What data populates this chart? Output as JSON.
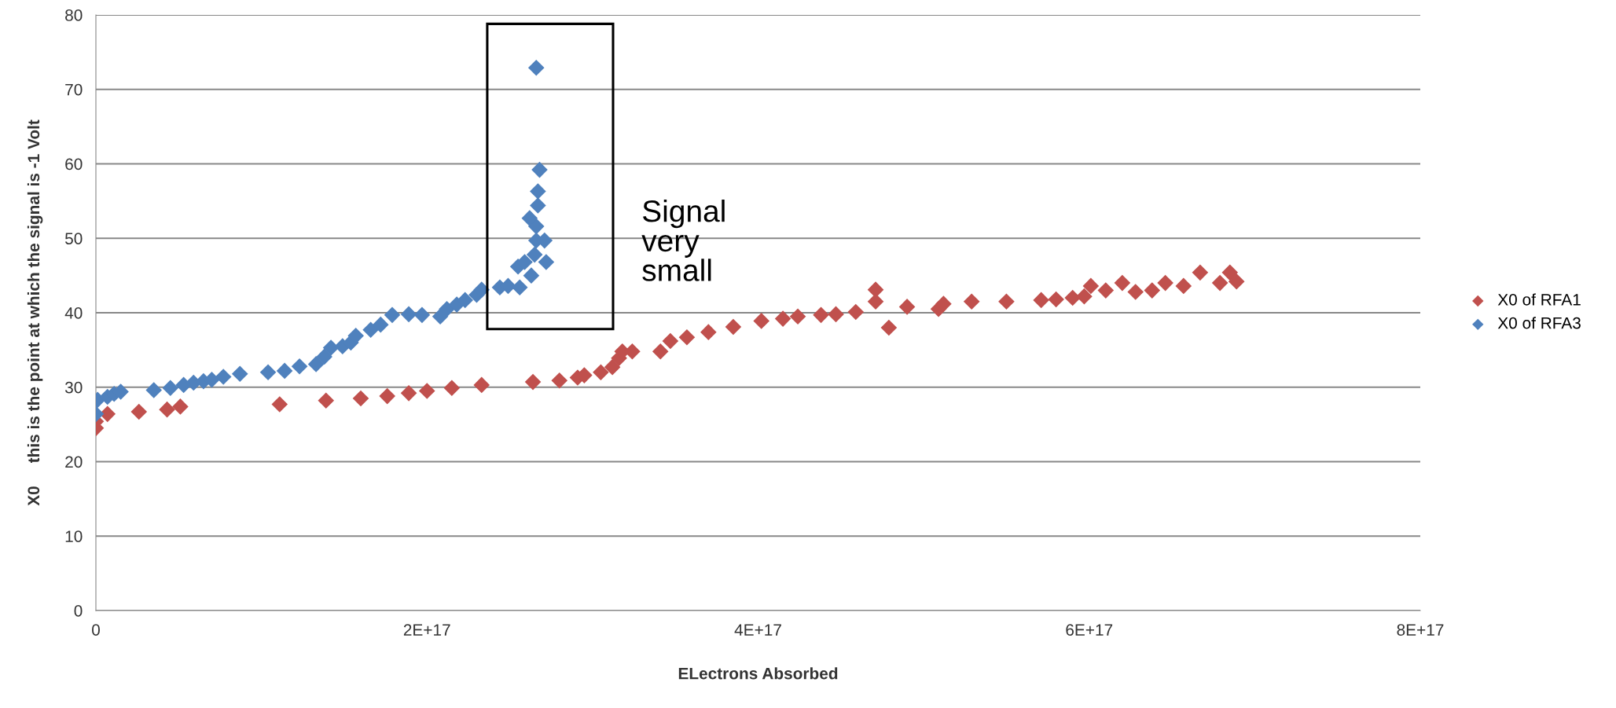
{
  "chart_data": {
    "type": "scatter",
    "xlabel": "ELectrons Absorbed",
    "ylabel": "X0     this is the point at which the signal is -1 Volt",
    "annotations": [
      "Signal\nvery\nsmall"
    ],
    "xlim": [
      0,
      8e+17
    ],
    "xticks": [
      0,
      {
        "value": 2e+17,
        "label": "2E+17"
      },
      {
        "value": 4e+17,
        "label": "4E+17"
      },
      {
        "value": 6e+17,
        "label": "6E+17"
      },
      {
        "value": 8e+17,
        "label": "8E+17"
      }
    ],
    "ylim": [
      0,
      80
    ],
    "yticks": [
      0,
      10,
      20,
      30,
      40,
      50,
      60,
      70,
      80
    ],
    "grid": "y",
    "legend": "right",
    "marker": "diamond",
    "series": [
      {
        "name": "X0 of RFA1",
        "color": "#c0504d",
        "x": [
          0,
          0,
          7000000000000000.0,
          2.6e+16,
          4.3e+16,
          5.1e+16,
          1.11e+17,
          1.39e+17,
          1.6e+17,
          1.76e+17,
          1.89e+17,
          2e+17,
          2.15e+17,
          2.33e+17,
          2.64e+17,
          2.8e+17,
          2.91e+17,
          2.95e+17,
          3.05e+17,
          3.12e+17,
          3.16e+17,
          3.18e+17,
          3.24e+17,
          3.41e+17,
          3.47e+17,
          3.57e+17,
          3.7e+17,
          3.85e+17,
          4.02e+17,
          4.15e+17,
          4.24e+17,
          4.38e+17,
          4.47e+17,
          4.59e+17,
          4.71e+17,
          4.71e+17,
          4.79e+17,
          4.9e+17,
          5.09e+17,
          5.12e+17,
          5.29e+17,
          5.5e+17,
          5.71e+17,
          5.8e+17,
          5.9e+17,
          5.97e+17,
          6.01e+17,
          6.1e+17,
          6.2e+17,
          6.28e+17,
          6.38e+17,
          6.46e+17,
          6.57e+17,
          6.67e+17,
          6.79e+17,
          6.85e+17,
          6.89e+17
        ],
        "values": [
          24.5,
          25.4,
          26.4,
          26.7,
          27.0,
          27.4,
          27.7,
          28.2,
          28.5,
          28.8,
          29.2,
          29.5,
          29.9,
          30.3,
          30.7,
          30.9,
          31.3,
          31.6,
          32.0,
          32.7,
          33.9,
          34.8,
          34.8,
          34.8,
          36.2,
          36.7,
          37.4,
          38.1,
          38.9,
          39.2,
          39.5,
          39.7,
          39.8,
          40.1,
          43.1,
          41.5,
          38.0,
          40.8,
          40.5,
          41.2,
          41.5,
          41.5,
          41.7,
          41.8,
          42.0,
          42.2,
          43.6,
          43.0,
          44.0,
          42.8,
          43.0,
          44.0,
          43.6,
          45.4,
          44.0,
          45.4,
          44.2
        ]
      },
      {
        "name": "X0 of RFA3",
        "color": "#4f81bd",
        "x": [
          1000000000000000.0,
          0,
          7000000000000000.0,
          1.1e+16,
          1.5e+16,
          3.5e+16,
          4.5e+16,
          5.3e+16,
          5.9e+16,
          6.5e+16,
          7e+16,
          7.7e+16,
          8.7e+16,
          1.04e+17,
          1.14e+17,
          1.23e+17,
          1.33e+17,
          1.38e+17,
          1.42e+17,
          1.49e+17,
          1.54e+17,
          1.57e+17,
          1.66e+17,
          1.72e+17,
          1.79e+17,
          1.89e+17,
          1.97e+17,
          2.08e+17,
          2.12e+17,
          2.18e+17,
          2.23e+17,
          2.3e+17,
          2.33e+17,
          2.44e+17,
          2.49e+17,
          2.56e+17,
          2.55e+17,
          2.59e+17,
          2.63e+17,
          2.65e+17,
          2.66e+17,
          2.66e+17,
          2.62e+17,
          2.67e+17,
          2.67e+17,
          2.68e+17,
          2.66e+17,
          2.72e+17,
          2.71e+17
        ],
        "values": [
          28.3,
          26.4,
          28.7,
          29.1,
          29.4,
          29.6,
          29.9,
          30.3,
          30.6,
          30.8,
          31.0,
          31.4,
          31.8,
          32.0,
          32.2,
          32.8,
          33.1,
          34.1,
          35.3,
          35.5,
          36.0,
          36.9,
          37.7,
          38.4,
          39.7,
          39.8,
          39.7,
          39.5,
          40.5,
          41.1,
          41.7,
          42.4,
          43.1,
          43.4,
          43.6,
          43.4,
          46.2,
          46.8,
          45.0,
          47.8,
          49.7,
          51.6,
          52.7,
          54.4,
          56.3,
          59.2,
          72.9,
          46.8,
          49.7
        ]
      }
    ]
  }
}
